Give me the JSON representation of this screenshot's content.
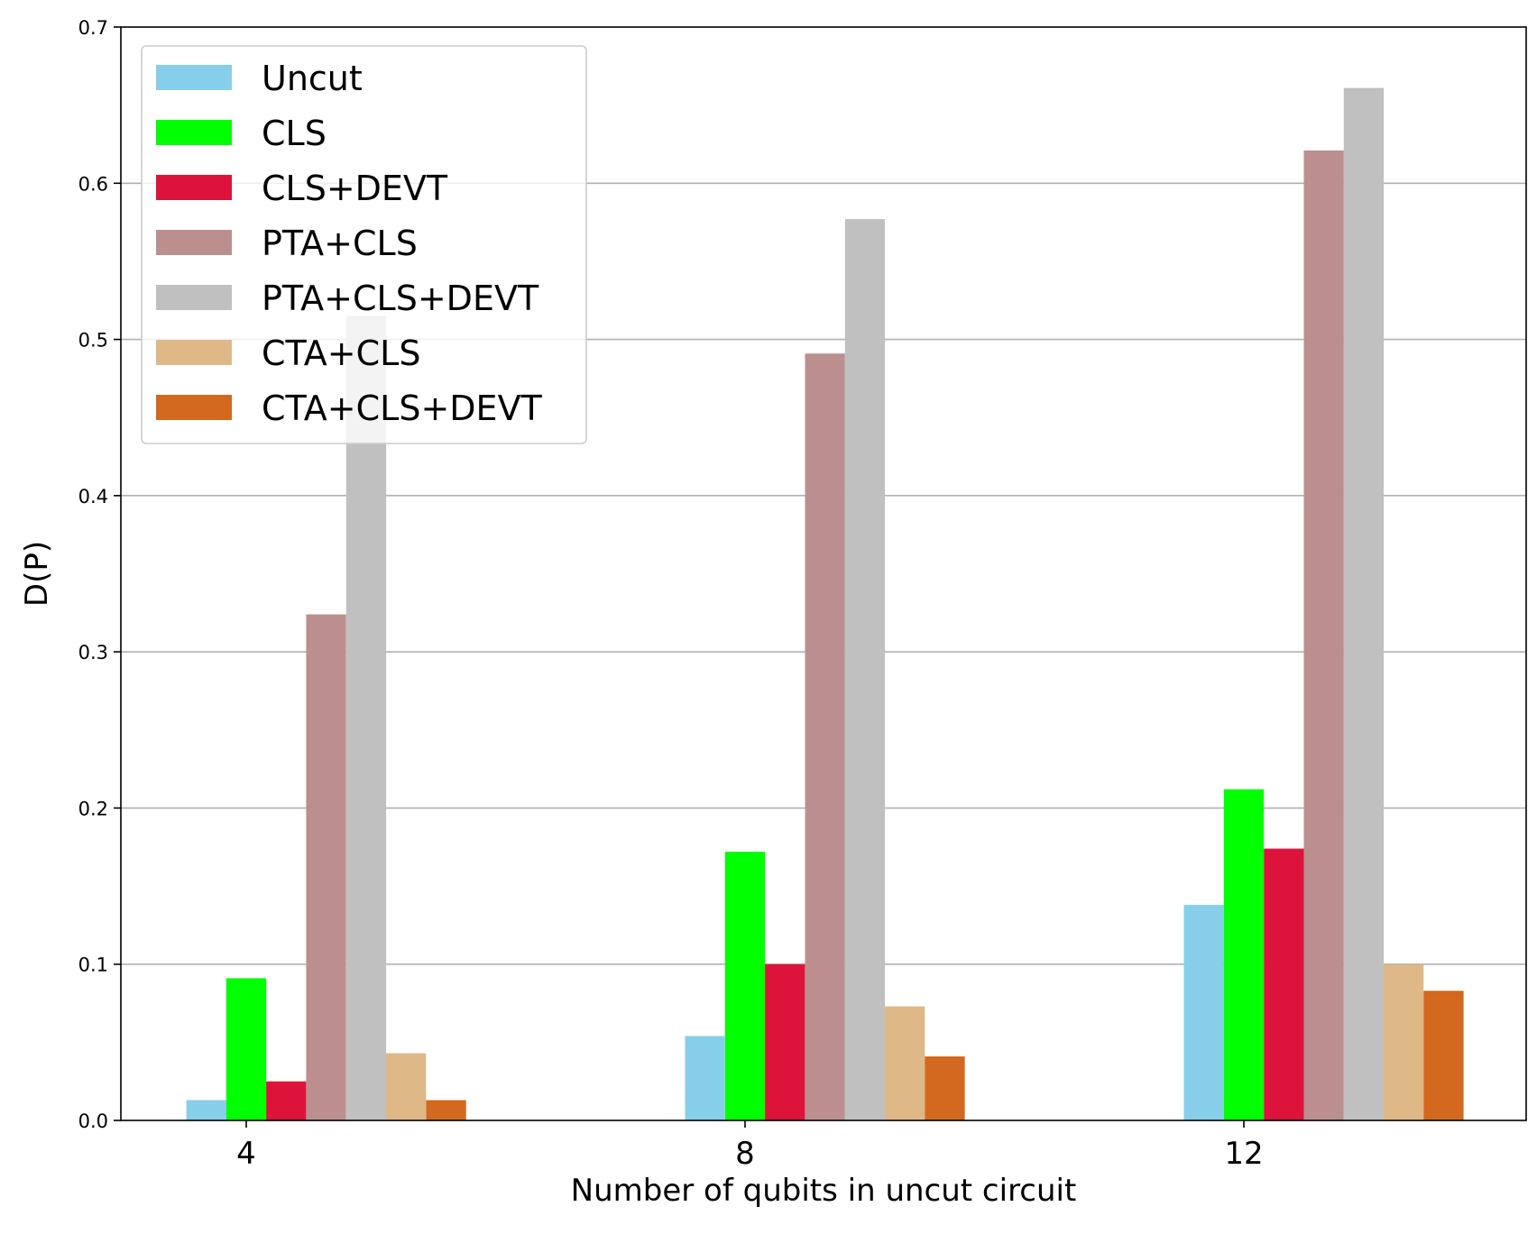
{
  "chart_data": {
    "type": "bar",
    "title": "",
    "xlabel": "Number of qubits in uncut circuit",
    "ylabel": "D(P)",
    "categories": [
      "4",
      "8",
      "12"
    ],
    "ylim": [
      0,
      0.7
    ],
    "yticks": [
      "0.0",
      "0.1",
      "0.2",
      "0.3",
      "0.4",
      "0.5",
      "0.6",
      "0.7"
    ],
    "grid": "horizontal",
    "legend_position": "top-left",
    "series": [
      {
        "name": "Uncut",
        "color": "#87ceeb",
        "values": [
          0.013,
          0.054,
          0.138
        ]
      },
      {
        "name": "CLS",
        "color": "#00ff00",
        "values": [
          0.091,
          0.172,
          0.212
        ]
      },
      {
        "name": "CLS+DEVT",
        "color": "#dc143c",
        "values": [
          0.025,
          0.1,
          0.174
        ]
      },
      {
        "name": "PTA+CLS",
        "color": "#bc8f8f",
        "values": [
          0.324,
          0.491,
          0.621
        ]
      },
      {
        "name": "PTA+CLS+DEVT",
        "color": "#c0c0c0",
        "values": [
          0.515,
          0.577,
          0.661
        ]
      },
      {
        "name": "CTA+CLS",
        "color": "#deb887",
        "values": [
          0.043,
          0.073,
          0.1
        ]
      },
      {
        "name": "CTA+CLS+DEVT",
        "color": "#d2691e",
        "values": [
          0.013,
          0.041,
          0.083
        ]
      }
    ]
  }
}
